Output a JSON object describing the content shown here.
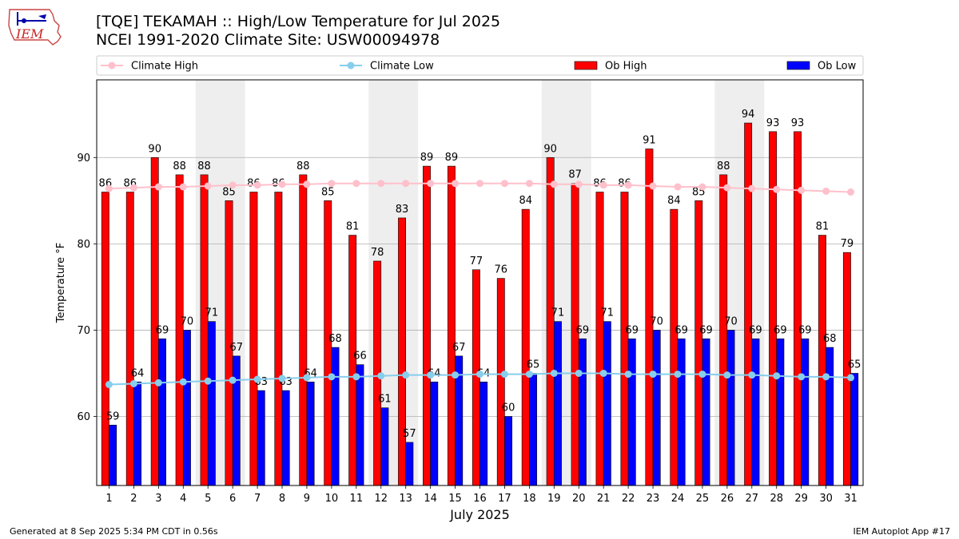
{
  "header": {
    "title_line1": "[TQE] TEKAMAH :: High/Low Temperature for Jul 2025",
    "title_line2": "NCEI 1991-2020 Climate Site: USW00094978",
    "logo_text": "IEM"
  },
  "footer": {
    "generated": "Generated at 8 Sep 2025 5:34 PM CDT in 0.56s",
    "app": "IEM Autoplot App #17"
  },
  "colors": {
    "ob_high": "#ff0000",
    "ob_low": "#0000ff",
    "climate_high": "#ffc0cb",
    "climate_low": "#87ceeb",
    "weekend_shade": "#eeeeee"
  },
  "chart_data": {
    "type": "bar",
    "xlabel": "July 2025",
    "ylabel": "Temperature °F",
    "ylim": [
      52,
      99
    ],
    "yticks": [
      60,
      70,
      80,
      90
    ],
    "grid": "horizontal",
    "legend_position": "top",
    "legend": [
      {
        "label": "Climate High",
        "kind": "line"
      },
      {
        "label": "Climate Low",
        "kind": "line"
      },
      {
        "label": "Ob High",
        "kind": "bar"
      },
      {
        "label": "Ob Low",
        "kind": "bar"
      }
    ],
    "categories": [
      "1",
      "2",
      "3",
      "4",
      "5",
      "6",
      "7",
      "8",
      "9",
      "10",
      "11",
      "12",
      "13",
      "14",
      "15",
      "16",
      "17",
      "18",
      "19",
      "20",
      "21",
      "22",
      "23",
      "24",
      "25",
      "26",
      "27",
      "28",
      "29",
      "30",
      "31"
    ],
    "shaded_days": [
      [
        5,
        6
      ],
      [
        12,
        13
      ],
      [
        19,
        20
      ],
      [
        26,
        27
      ]
    ],
    "series": [
      {
        "name": "Ob High",
        "values": [
          86,
          86,
          90,
          88,
          88,
          85,
          86,
          86,
          88,
          85,
          81,
          78,
          83,
          89,
          89,
          77,
          76,
          84,
          90,
          87,
          86,
          86,
          91,
          84,
          85,
          88,
          94,
          93,
          93,
          81,
          79
        ]
      },
      {
        "name": "Ob Low",
        "values": [
          59,
          64,
          69,
          70,
          71,
          67,
          63,
          63,
          64,
          68,
          66,
          61,
          57,
          64,
          67,
          64,
          60,
          65,
          71,
          69,
          71,
          69,
          70,
          69,
          69,
          70,
          69,
          69,
          69,
          68,
          65
        ]
      },
      {
        "name": "Climate High",
        "values": [
          86.4,
          86.5,
          86.6,
          86.6,
          86.7,
          86.8,
          86.8,
          86.9,
          86.9,
          87.0,
          87.0,
          87.0,
          87.0,
          87.0,
          87.0,
          87.0,
          87.0,
          87.0,
          86.9,
          86.9,
          86.8,
          86.8,
          86.7,
          86.6,
          86.6,
          86.5,
          86.4,
          86.3,
          86.2,
          86.1,
          86.0
        ]
      },
      {
        "name": "Climate Low",
        "values": [
          63.7,
          63.8,
          63.9,
          64.0,
          64.1,
          64.2,
          64.3,
          64.4,
          64.5,
          64.6,
          64.6,
          64.7,
          64.8,
          64.8,
          64.8,
          64.9,
          64.9,
          64.9,
          65.0,
          65.0,
          65.0,
          64.9,
          64.9,
          64.9,
          64.9,
          64.8,
          64.8,
          64.7,
          64.6,
          64.6,
          64.5
        ]
      }
    ]
  }
}
